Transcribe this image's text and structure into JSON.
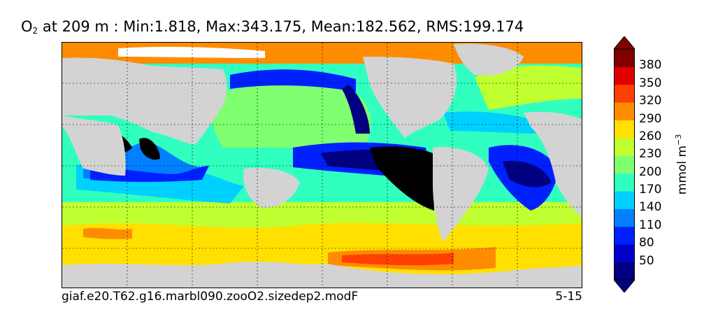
{
  "title": {
    "variable": "O",
    "subscript": "2",
    "rest": " at 209 m : Min:1.818, Max:343.175, Mean:182.562, RMS:199.174"
  },
  "footer": {
    "case": "giaf.e20.T62.g16.marbl090.zooO2.sizedep2.modF",
    "years": "5-15"
  },
  "colorbar": {
    "unit_base": "mmol m",
    "unit_exp": "−3",
    "ticks": [
      "50",
      "80",
      "110",
      "140",
      "170",
      "200",
      "230",
      "260",
      "290",
      "320",
      "350",
      "380"
    ],
    "colors": [
      "#000080",
      "#0000c8",
      "#0020ff",
      "#0080ff",
      "#00d0ff",
      "#30ffc0",
      "#80ff70",
      "#c0ff30",
      "#ffe000",
      "#ff8c00",
      "#ff4000",
      "#e00000",
      "#800000"
    ]
  },
  "colors": {
    "land": "#d3d3d3",
    "below_min": "#000000",
    "sea_ice": "#ffffff"
  }
}
